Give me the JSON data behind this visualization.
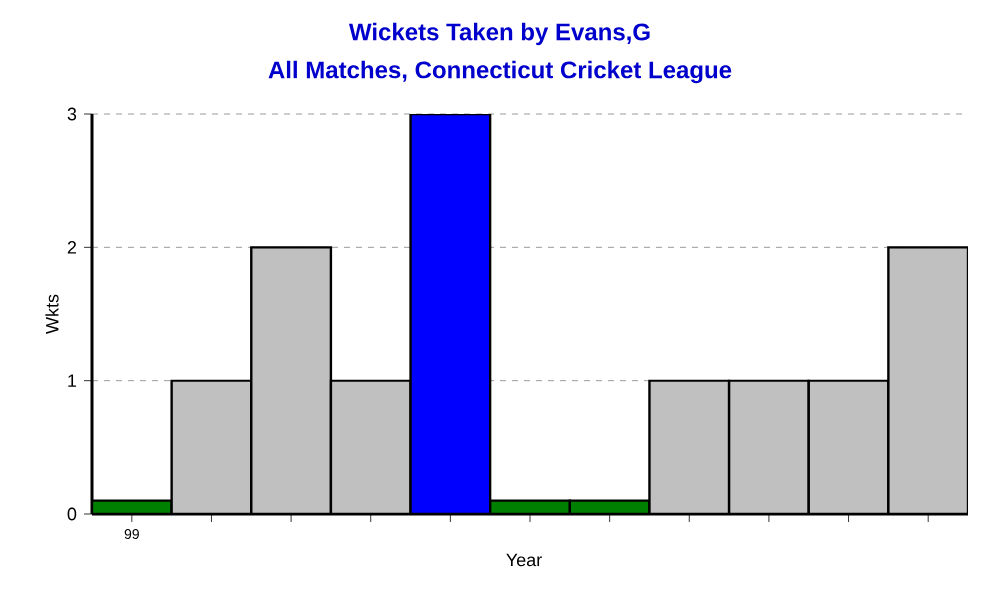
{
  "chart_data": {
    "type": "bar",
    "title": "Wickets Taken by Evans,G",
    "subtitle": "All Matches, Connecticut Cricket League",
    "xlabel": "Year",
    "ylabel": "Wkts",
    "categories": [
      "99",
      null,
      null,
      null,
      null,
      null,
      null,
      null,
      null,
      null,
      null
    ],
    "values": [
      0.1,
      1,
      2,
      1,
      3,
      0.1,
      0.1,
      1,
      1,
      1,
      2
    ],
    "colors": [
      "#008000",
      "#c0c0c0",
      "#c0c0c0",
      "#c0c0c0",
      "#0000ff",
      "#008000",
      "#008000",
      "#c0c0c0",
      "#c0c0c0",
      "#c0c0c0",
      "#c0c0c0"
    ],
    "ylim": [
      0,
      3
    ],
    "yticks": [
      0,
      1,
      2,
      3
    ],
    "grid": "y"
  }
}
